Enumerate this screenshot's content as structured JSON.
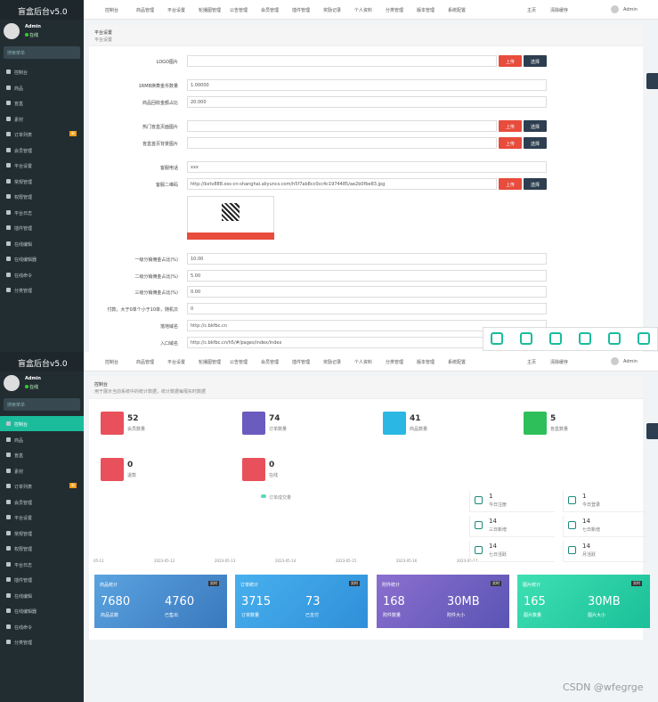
{
  "brand": "盲盒后台v5.0",
  "user": {
    "name": "Admin",
    "status": "在线"
  },
  "search_placeholder": "搜索菜单",
  "menu": [
    "控制台",
    "商品",
    "盲盒",
    "素材",
    "订单列表",
    "会员管理",
    "平台设置",
    "常规管理",
    "权限管理",
    "平台日志",
    "插件管理",
    "在线编辑",
    "在线编辑器",
    "在线命令",
    "分类管理"
  ],
  "menu_badge": "新",
  "nav_tabs": [
    "控制台",
    "商品管理",
    "平台设置",
    "轮播图管理",
    "公告管理",
    "会员管理",
    "插件管理",
    "奖励记录",
    "个人资料",
    "分类管理",
    "版本管理",
    "系统配置"
  ],
  "nav_right": {
    "home": "主页",
    "cache": "清除缓存",
    "admin": "Admin"
  },
  "settings": {
    "title": "平台设置",
    "subtitle": "平台设置",
    "buttons": {
      "upload": "上传",
      "choose": "选择"
    },
    "fields": [
      {
        "label": "LOGO图片",
        "kind": "image"
      },
      {
        "label": "1RMB换算金币数量",
        "value": "1.00000"
      },
      {
        "label": "商品回收金额占比",
        "value": "20.000"
      },
      {
        "label": "热门盲盒页面图片",
        "kind": "image"
      },
      {
        "label": "盲盒首页背景图片",
        "kind": "image"
      },
      {
        "label": "客服电话",
        "value": "xxx"
      },
      {
        "label": "客服二维码",
        "value": "http://bxtv888.oss-cn-shanghai.aliyuncs.com/h5f7ab8cc0cc4c1974485/ae2b0fbe83.jpg",
        "kind": "image",
        "qr": true
      },
      {
        "label": "一级分销佣金占比(%)",
        "value": "10.00"
      },
      {
        "label": "二级分销佣金占比(%)",
        "value": "5.00"
      },
      {
        "label": "三级分销佣金占比(%)",
        "value": "0.00"
      },
      {
        "label": "付款，大于0单个小于10单，随机次",
        "value": "0"
      },
      {
        "label": "落地域名",
        "value": "http://c.bkfbc.cn"
      },
      {
        "label": "入口域名",
        "value": "http://c.bkfbc.cn/h5/#/pages/index/index"
      }
    ]
  },
  "dashboard": {
    "title": "控制台",
    "description": "用于展示当前系统中的统计数据，统计数据每隔实时数据",
    "stats": [
      {
        "value": 52,
        "label": "会员数量",
        "color": "#e8505b"
      },
      {
        "value": 74,
        "label": "订单数量",
        "color": "#6a5bbf"
      },
      {
        "value": 41,
        "label": "商品数量",
        "color": "#2bb7e3"
      },
      {
        "value": 5,
        "label": "盲盒数量",
        "color": "#2fbf5a"
      },
      {
        "value": 0,
        "label": "退款",
        "color": "#e8505b"
      },
      {
        "value": 0,
        "label": "在线",
        "color": "#e8505b"
      }
    ],
    "chart": {
      "legend": "订单成交量",
      "dates": [
        "05-11",
        "2023-05-12",
        "2023-05-13",
        "2023-05-14",
        "2023-05-15",
        "2023-05-16",
        "2023-05-17"
      ]
    },
    "mini": [
      {
        "value": 1,
        "label": "今日注册"
      },
      {
        "value": 1,
        "label": "今日登录"
      },
      {
        "value": 14,
        "label": "三日新增"
      },
      {
        "value": 14,
        "label": "七日新增"
      },
      {
        "value": 14,
        "label": "七日活跃"
      },
      {
        "value": 14,
        "label": "月活跃"
      }
    ],
    "cards": [
      {
        "title": "商品统计",
        "tag": "实时",
        "items": [
          {
            "value": 7680,
            "label": "商品总数"
          },
          {
            "value": 4760,
            "label": "已售出"
          }
        ]
      },
      {
        "title": "订单统计",
        "tag": "实时",
        "items": [
          {
            "value": 3715,
            "label": "订单数量"
          },
          {
            "value": 73,
            "label": "已支付"
          }
        ]
      },
      {
        "title": "附件统计",
        "tag": "实时",
        "items": [
          {
            "value": 168,
            "label": "附件数量"
          },
          {
            "value": "30MB",
            "label": "附件大小"
          }
        ]
      },
      {
        "title": "图片统计",
        "tag": "实时",
        "items": [
          {
            "value": 165,
            "label": "图片数量"
          },
          {
            "value": "30MB",
            "label": "图片大小"
          }
        ]
      }
    ]
  },
  "watermark": "CSDN @wfegrge"
}
